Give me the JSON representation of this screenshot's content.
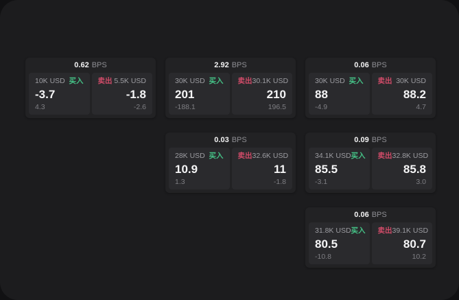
{
  "theme": {
    "page_bg": "#111113",
    "panel_bg": "#1c1c1e",
    "card_bg": "#222224",
    "subpanel_bg": "#2a2a2d",
    "text_primary": "#f5f5f6",
    "text_secondary": "#9d9da2",
    "text_muted": "#7e7e83",
    "buy_color": "#45c186",
    "sell_color": "#d04b68"
  },
  "labels": {
    "bps_unit": "BPS",
    "buy": "买入",
    "sell": "卖出"
  },
  "cards": [
    {
      "bps": "0.62",
      "buy": {
        "amount": "10K USD",
        "price": "-3.7",
        "delta": "4.3"
      },
      "sell": {
        "amount": "5.5K USD",
        "price": "-1.8",
        "delta": "-2.6"
      }
    },
    {
      "bps": "2.92",
      "buy": {
        "amount": "30K USD",
        "price": "201",
        "delta": "-188.1"
      },
      "sell": {
        "amount": "30.1K USD",
        "price": "210",
        "delta": "196.5"
      }
    },
    {
      "bps": "0.06",
      "buy": {
        "amount": "30K USD",
        "price": "88",
        "delta": "-4.9"
      },
      "sell": {
        "amount": "30K USD",
        "price": "88.2",
        "delta": "4.7"
      }
    },
    {
      "bps": "0.03",
      "buy": {
        "amount": "28K USD",
        "price": "10.9",
        "delta": "1.3"
      },
      "sell": {
        "amount": "32.6K USD",
        "price": "11",
        "delta": "-1.8"
      }
    },
    {
      "bps": "0.09",
      "buy": {
        "amount": "34.1K USD",
        "price": "85.5",
        "delta": "-3.1"
      },
      "sell": {
        "amount": "32.8K USD",
        "price": "85.8",
        "delta": "3.0"
      }
    },
    {
      "bps": "0.06",
      "buy": {
        "amount": "31.8K USD",
        "price": "80.5",
        "delta": "-10.8"
      },
      "sell": {
        "amount": "39.1K USD",
        "price": "80.7",
        "delta": "10.2"
      }
    }
  ]
}
